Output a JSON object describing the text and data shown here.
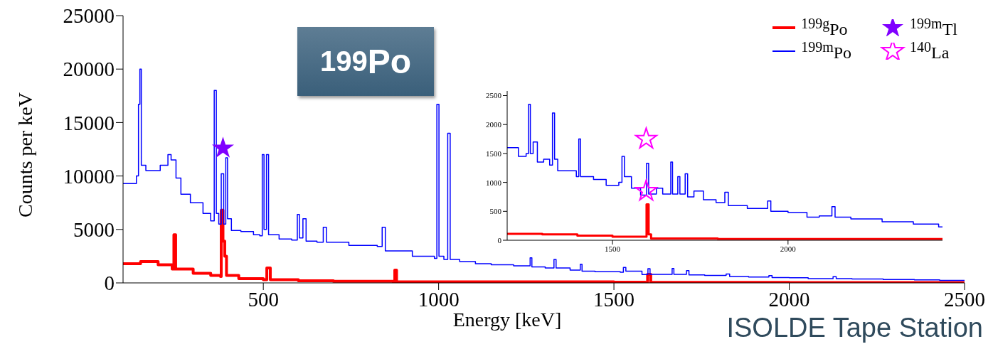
{
  "chart_data": [
    {
      "type": "step",
      "xlabel": "Energy [keV]",
      "ylabel": "Counts per keV",
      "xlim": [
        100,
        2500
      ],
      "ylim": [
        0,
        25000
      ],
      "xticks": [
        500,
        1000,
        1500,
        2000,
        2500
      ],
      "yticks": [
        0,
        5000,
        10000,
        15000,
        20000,
        25000
      ],
      "legend": "top right",
      "annotations": [
        "$^{199}$Po",
        "ISOLDE Tape Station"
      ],
      "series": [
        {
          "name": "$^{199g}$Po",
          "color": "#ff0000",
          "x": [
            100,
            150,
            200,
            240,
            245,
            250,
            300,
            350,
            378,
            380,
            385,
            390,
            395,
            430,
            500,
            510,
            520,
            600,
            700,
            870,
            875,
            880,
            1000,
            1500,
            1590,
            1596,
            1605,
            2000,
            2500
          ],
          "values": [
            1800,
            2000,
            1700,
            1300,
            4500,
            1300,
            900,
            700,
            600,
            6800,
            3900,
            2500,
            700,
            400,
            300,
            1400,
            300,
            200,
            150,
            100,
            1200,
            100,
            100,
            60,
            50,
            800,
            50,
            30,
            20
          ]
        },
        {
          "name": "$^{199m}$Po",
          "color": "#0000ff",
          "x": [
            100,
            138,
            144,
            148,
            152,
            165,
            206,
            228,
            237,
            251,
            265,
            292,
            328,
            350,
            360,
            366,
            373,
            380,
            387,
            393,
            398,
            409,
            436,
            472,
            490,
            497,
            502,
            509,
            515,
            545,
            581,
            597,
            603,
            613,
            622,
            653,
            671,
            680,
            744,
            789,
            825,
            839,
            848,
            925,
            988,
            995,
            1001,
            1015,
            1026,
            1033,
            1060,
            1105,
            1150,
            1214,
            1261,
            1266,
            1304,
            1329,
            1335,
            1375,
            1404,
            1409,
            1446,
            1518,
            1527,
            1534,
            1580,
            1597,
            1603,
            1666,
            1671,
            1707,
            1714,
            1759,
            1820,
            1830,
            1884,
            1942,
            1951,
            2000,
            2054,
            2125,
            2134,
            2179,
            2268,
            2357,
            2429,
            2500
          ],
          "values": [
            9300,
            10000,
            16700,
            20000,
            11000,
            10500,
            11000,
            12000,
            11500,
            9800,
            8300,
            7500,
            6500,
            5800,
            18000,
            6500,
            5500,
            10200,
            5500,
            11700,
            6000,
            4900,
            4800,
            4500,
            4400,
            12000,
            5000,
            12000,
            4500,
            4100,
            4000,
            6400,
            4200,
            6000,
            3900,
            3800,
            5200,
            3800,
            3500,
            3500,
            3400,
            5200,
            3000,
            2500,
            2300,
            16700,
            2500,
            2200,
            14000,
            2200,
            2000,
            1800,
            1700,
            1600,
            2350,
            1500,
            1400,
            2200,
            1400,
            1200,
            1750,
            1100,
            1050,
            1000,
            1450,
            1100,
            780,
            1330,
            800,
            1350,
            800,
            1150,
            750,
            700,
            830,
            600,
            550,
            680,
            500,
            480,
            400,
            580,
            400,
            370,
            320,
            280,
            230,
            200
          ]
        },
        {
          "type": "scatter",
          "marker": "star",
          "name": "$^{199m}$Tl",
          "color": "#8000ff",
          "x": [
            385
          ],
          "values": [
            12600
          ]
        }
      ]
    },
    {
      "type": "step",
      "xlim": [
        1200,
        2440
      ],
      "ylim": [
        0,
        2580
      ],
      "xticks": [
        1500,
        2000
      ],
      "yticks": [
        0,
        500,
        1000,
        1500,
        2000,
        2500
      ],
      "series": [
        {
          "color": "#ff0000",
          "x": [
            1200,
            1214,
            1300,
            1400,
            1500,
            1590,
            1597,
            1603,
            1610,
            1800,
            2440
          ],
          "values": [
            110,
            110,
            100,
            80,
            60,
            60,
            620,
            100,
            30,
            20,
            10
          ]
        },
        {
          "color": "#0000ff",
          "x": [
            1200,
            1214,
            1232,
            1254,
            1261,
            1266,
            1274,
            1286,
            1304,
            1321,
            1329,
            1335,
            1344,
            1375,
            1397,
            1404,
            1409,
            1446,
            1482,
            1518,
            1527,
            1534,
            1554,
            1580,
            1597,
            1603,
            1625,
            1643,
            1666,
            1671,
            1686,
            1692,
            1707,
            1714,
            1732,
            1759,
            1795,
            1820,
            1830,
            1884,
            1942,
            1951,
            2000,
            2054,
            2089,
            2125,
            2134,
            2179,
            2268,
            2357,
            2429,
            2440
          ],
          "values": [
            1600,
            1600,
            1450,
            1500,
            2350,
            1500,
            1700,
            1350,
            1400,
            1300,
            2200,
            1400,
            1200,
            1200,
            1100,
            1750,
            1100,
            1050,
            950,
            1000,
            1450,
            1100,
            900,
            780,
            1330,
            800,
            900,
            800,
            1350,
            800,
            1100,
            800,
            1150,
            750,
            850,
            700,
            650,
            830,
            600,
            550,
            680,
            500,
            480,
            400,
            420,
            580,
            400,
            370,
            320,
            280,
            230,
            230
          ]
        },
        {
          "type": "scatter",
          "marker": "star",
          "name": "$^{140}$La",
          "color": "#ff00ff",
          "x": [
            1596,
            1596
          ],
          "values": [
            1750,
            850
          ]
        }
      ]
    }
  ]
}
